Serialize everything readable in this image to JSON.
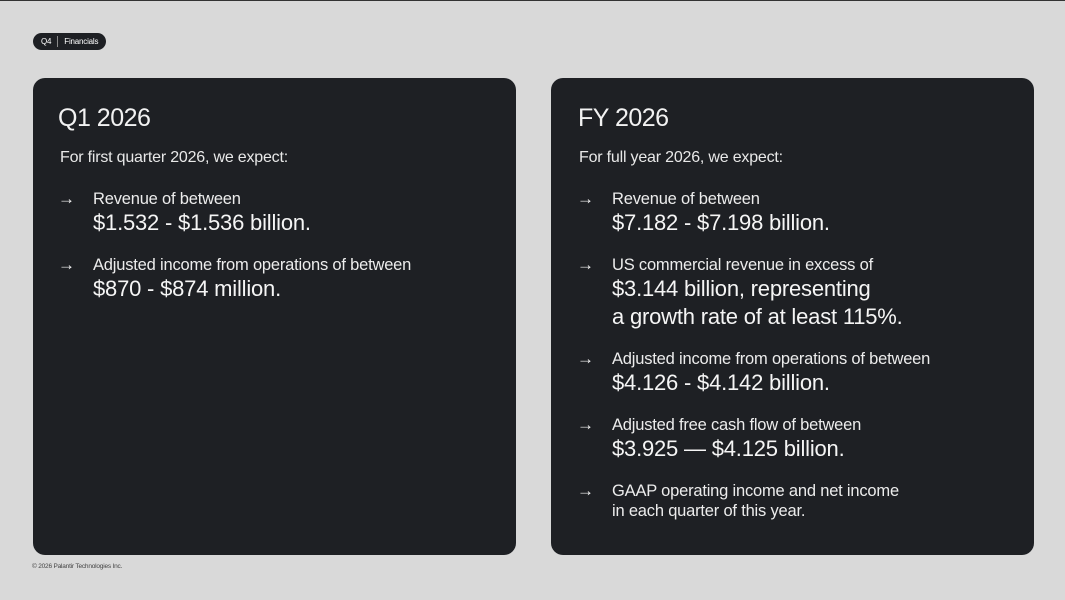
{
  "tag": {
    "section": "Q4",
    "topic": "Financials"
  },
  "left_panel": {
    "title": "Q1 2026",
    "intro": "For first quarter 2026, we expect:",
    "items": [
      {
        "label": "Revenue of between",
        "value": "$1.532 - $1.536 billion."
      },
      {
        "label": "Adjusted income from operations of between",
        "value": "$870 - $874 million."
      }
    ]
  },
  "right_panel": {
    "title": "FY 2026",
    "intro": "For full year 2026, we expect:",
    "items": [
      {
        "label": "Revenue of between",
        "value": "$7.182 - $7.198 billion."
      },
      {
        "label": "US commercial revenue in excess of",
        "value_line1": "$3.144 billion, representing",
        "value_line2": "a growth rate of at least 115%."
      },
      {
        "label": "Adjusted income from operations of between",
        "value": "$4.126 - $4.142 billion."
      },
      {
        "label": "Adjusted free cash flow of between",
        "value": "$3.925 — $4.125 billion."
      },
      {
        "note_line1": "GAAP operating income and net income",
        "note_line2": "in each quarter of this year."
      }
    ]
  },
  "footer": {
    "copyright": "© 2026 Palantir Technologies Inc."
  },
  "icons": {
    "bullet": "→"
  },
  "colors": {
    "background": "#d9d9d9",
    "panel": "#1e2024",
    "text": "#f2f2f2"
  }
}
